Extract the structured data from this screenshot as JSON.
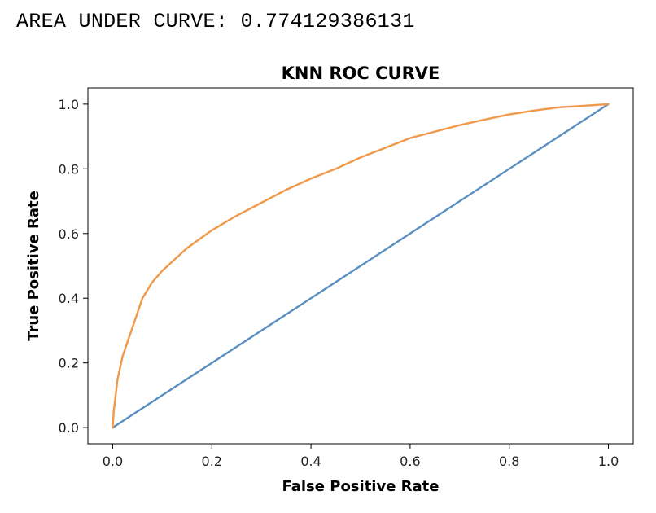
{
  "output": {
    "text": "AREA UNDER CURVE: 0.774129386131"
  },
  "chart_data": {
    "type": "line",
    "title": "KNN ROC CURVE",
    "xlabel": "False Positive Rate",
    "ylabel": "True Positive Rate",
    "xlim": [
      -0.05,
      1.05
    ],
    "ylim": [
      -0.05,
      1.05
    ],
    "xticks": [
      0.0,
      0.2,
      0.4,
      0.6,
      0.8,
      1.0
    ],
    "xtick_labels": [
      "0.0",
      "0.2",
      "0.4",
      "0.6",
      "0.8",
      "1.0"
    ],
    "yticks": [
      0.0,
      0.2,
      0.4,
      0.6,
      0.8,
      1.0
    ],
    "ytick_labels": [
      "0.0",
      "0.2",
      "0.4",
      "0.6",
      "0.8",
      "1.0"
    ],
    "grid": false,
    "series": [
      {
        "color": "#5b8fc2",
        "x": [
          0.0,
          1.0
        ],
        "y": [
          0.0,
          1.0
        ]
      },
      {
        "color": "#f0994a",
        "x": [
          0.0,
          0.002,
          0.01,
          0.02,
          0.04,
          0.06,
          0.08,
          0.1,
          0.15,
          0.2,
          0.25,
          0.3,
          0.35,
          0.4,
          0.45,
          0.5,
          0.55,
          0.6,
          0.65,
          0.7,
          0.75,
          0.8,
          0.85,
          0.9,
          0.95,
          1.0
        ],
        "y": [
          0.0,
          0.05,
          0.15,
          0.22,
          0.31,
          0.4,
          0.45,
          0.485,
          0.555,
          0.61,
          0.655,
          0.695,
          0.735,
          0.77,
          0.8,
          0.835,
          0.865,
          0.895,
          0.915,
          0.935,
          0.952,
          0.968,
          0.98,
          0.99,
          0.995,
          1.0
        ]
      }
    ]
  }
}
